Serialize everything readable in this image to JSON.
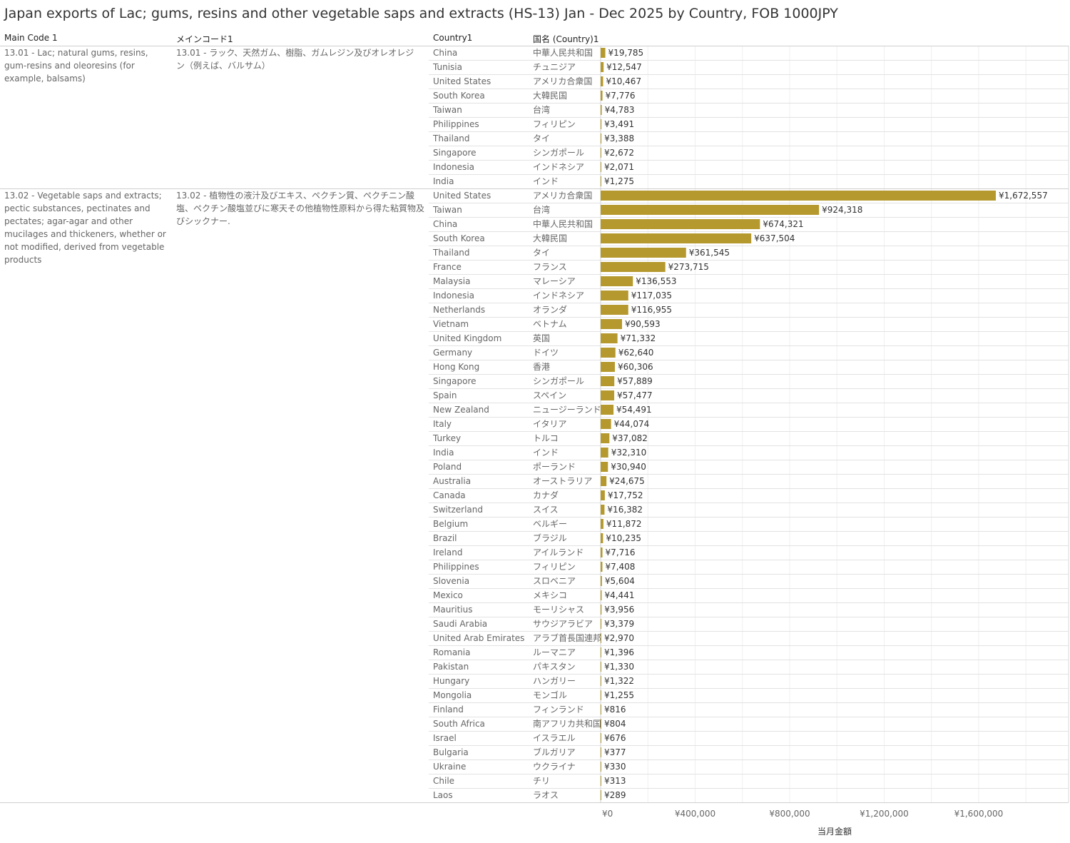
{
  "title": "Japan exports of Lac; gums, resins and other vegetable saps and extracts (HS-13) Jan - Dec 2025 by Country, FOB 1000JPY",
  "headers": {
    "main_code": "Main Code 1",
    "main_code_jp": "メインコード1",
    "country": "Country1",
    "country_jp": "国名 (Country)1"
  },
  "colors": {
    "bar": "#b5992e"
  },
  "chart_data": {
    "type": "bar",
    "orientation": "horizontal",
    "xlabel": "当月金額",
    "xlim": [
      0,
      1970000
    ],
    "xticks": [
      0,
      400000,
      800000,
      1200000,
      1600000
    ],
    "xtick_labels": [
      "¥0",
      "¥400,000",
      "¥800,000",
      "¥1,200,000",
      "¥1,600,000"
    ],
    "grid": true,
    "groups": [
      {
        "code": "13.01 - Lac; natural gums, resins, gum-resins and oleoresins (for example, balsams)",
        "code_jp": "13.01 - ラック、天然ガム、樹脂、ガムレジン及びオレオレジン（例えば、バルサム）",
        "rows": [
          {
            "country": "China",
            "country_jp": "中華人民共和国",
            "value": 19785,
            "label": "¥19,785"
          },
          {
            "country": "Tunisia",
            "country_jp": "チュニジア",
            "value": 12547,
            "label": "¥12,547"
          },
          {
            "country": "United States",
            "country_jp": "アメリカ合衆国",
            "value": 10467,
            "label": "¥10,467"
          },
          {
            "country": "South Korea",
            "country_jp": "大韓民国",
            "value": 7776,
            "label": "¥7,776"
          },
          {
            "country": "Taiwan",
            "country_jp": "台湾",
            "value": 4783,
            "label": "¥4,783"
          },
          {
            "country": "Philippines",
            "country_jp": "フィリピン",
            "value": 3491,
            "label": "¥3,491"
          },
          {
            "country": "Thailand",
            "country_jp": "タイ",
            "value": 3388,
            "label": "¥3,388"
          },
          {
            "country": "Singapore",
            "country_jp": "シンガポール",
            "value": 2672,
            "label": "¥2,672"
          },
          {
            "country": "Indonesia",
            "country_jp": "インドネシア",
            "value": 2071,
            "label": "¥2,071"
          },
          {
            "country": "India",
            "country_jp": "インド",
            "value": 1275,
            "label": "¥1,275"
          }
        ]
      },
      {
        "code": "13.02 - Vegetable saps and extracts; pectic substances, pectinates and pectates; agar-agar and other mucilages and thickeners, whether or not modified, derived from vegetable products",
        "code_jp": "13.02 - 植物性の液汁及びエキス、ペクチン質、ペクチニン酸塩、ペクチン酸塩並びに寒天その他植物性原料から得た粘質物及びシックナー.",
        "rows": [
          {
            "country": "United States",
            "country_jp": "アメリカ合衆国",
            "value": 1672557,
            "label": "¥1,672,557"
          },
          {
            "country": "Taiwan",
            "country_jp": "台湾",
            "value": 924318,
            "label": "¥924,318"
          },
          {
            "country": "China",
            "country_jp": "中華人民共和国",
            "value": 674321,
            "label": "¥674,321"
          },
          {
            "country": "South Korea",
            "country_jp": "大韓民国",
            "value": 637504,
            "label": "¥637,504"
          },
          {
            "country": "Thailand",
            "country_jp": "タイ",
            "value": 361545,
            "label": "¥361,545"
          },
          {
            "country": "France",
            "country_jp": "フランス",
            "value": 273715,
            "label": "¥273,715"
          },
          {
            "country": "Malaysia",
            "country_jp": "マレーシア",
            "value": 136553,
            "label": "¥136,553"
          },
          {
            "country": "Indonesia",
            "country_jp": "インドネシア",
            "value": 117035,
            "label": "¥117,035"
          },
          {
            "country": "Netherlands",
            "country_jp": "オランダ",
            "value": 116955,
            "label": "¥116,955"
          },
          {
            "country": "Vietnam",
            "country_jp": "ベトナム",
            "value": 90593,
            "label": "¥90,593"
          },
          {
            "country": "United Kingdom",
            "country_jp": "英国",
            "value": 71332,
            "label": "¥71,332"
          },
          {
            "country": "Germany",
            "country_jp": "ドイツ",
            "value": 62640,
            "label": "¥62,640"
          },
          {
            "country": "Hong Kong",
            "country_jp": "香港",
            "value": 60306,
            "label": "¥60,306"
          },
          {
            "country": "Singapore",
            "country_jp": "シンガポール",
            "value": 57889,
            "label": "¥57,889"
          },
          {
            "country": "Spain",
            "country_jp": "スペイン",
            "value": 57477,
            "label": "¥57,477"
          },
          {
            "country": "New Zealand",
            "country_jp": "ニュージーランド",
            "value": 54491,
            "label": "¥54,491"
          },
          {
            "country": "Italy",
            "country_jp": "イタリア",
            "value": 44074,
            "label": "¥44,074"
          },
          {
            "country": "Turkey",
            "country_jp": "トルコ",
            "value": 37082,
            "label": "¥37,082"
          },
          {
            "country": "India",
            "country_jp": "インド",
            "value": 32310,
            "label": "¥32,310"
          },
          {
            "country": "Poland",
            "country_jp": "ポーランド",
            "value": 30940,
            "label": "¥30,940"
          },
          {
            "country": "Australia",
            "country_jp": "オーストラリア",
            "value": 24675,
            "label": "¥24,675"
          },
          {
            "country": "Canada",
            "country_jp": "カナダ",
            "value": 17752,
            "label": "¥17,752"
          },
          {
            "country": "Switzerland",
            "country_jp": "スイス",
            "value": 16382,
            "label": "¥16,382"
          },
          {
            "country": "Belgium",
            "country_jp": "ベルギー",
            "value": 11872,
            "label": "¥11,872"
          },
          {
            "country": "Brazil",
            "country_jp": "ブラジル",
            "value": 10235,
            "label": "¥10,235"
          },
          {
            "country": "Ireland",
            "country_jp": "アイルランド",
            "value": 7716,
            "label": "¥7,716"
          },
          {
            "country": "Philippines",
            "country_jp": "フィリピン",
            "value": 7408,
            "label": "¥7,408"
          },
          {
            "country": "Slovenia",
            "country_jp": "スロベニア",
            "value": 5604,
            "label": "¥5,604"
          },
          {
            "country": "Mexico",
            "country_jp": "メキシコ",
            "value": 4441,
            "label": "¥4,441"
          },
          {
            "country": "Mauritius",
            "country_jp": "モーリシャス",
            "value": 3956,
            "label": "¥3,956"
          },
          {
            "country": "Saudi Arabia",
            "country_jp": "サウジアラビア",
            "value": 3379,
            "label": "¥3,379"
          },
          {
            "country": "United Arab Emirates",
            "country_jp": "アラブ首長国連邦",
            "value": 2970,
            "label": "¥2,970"
          },
          {
            "country": "Romania",
            "country_jp": "ルーマニア",
            "value": 1396,
            "label": "¥1,396"
          },
          {
            "country": "Pakistan",
            "country_jp": "パキスタン",
            "value": 1330,
            "label": "¥1,330"
          },
          {
            "country": "Hungary",
            "country_jp": "ハンガリー",
            "value": 1322,
            "label": "¥1,322"
          },
          {
            "country": "Mongolia",
            "country_jp": "モンゴル",
            "value": 1255,
            "label": "¥1,255"
          },
          {
            "country": "Finland",
            "country_jp": "フィンランド",
            "value": 816,
            "label": "¥816"
          },
          {
            "country": "South Africa",
            "country_jp": "南アフリカ共和国",
            "value": 804,
            "label": "¥804"
          },
          {
            "country": "Israel",
            "country_jp": "イスラエル",
            "value": 676,
            "label": "¥676"
          },
          {
            "country": "Bulgaria",
            "country_jp": "ブルガリア",
            "value": 377,
            "label": "¥377"
          },
          {
            "country": "Ukraine",
            "country_jp": "ウクライナ",
            "value": 330,
            "label": "¥330"
          },
          {
            "country": "Chile",
            "country_jp": "チリ",
            "value": 313,
            "label": "¥313"
          },
          {
            "country": "Laos",
            "country_jp": "ラオス",
            "value": 289,
            "label": "¥289"
          }
        ]
      }
    ]
  }
}
